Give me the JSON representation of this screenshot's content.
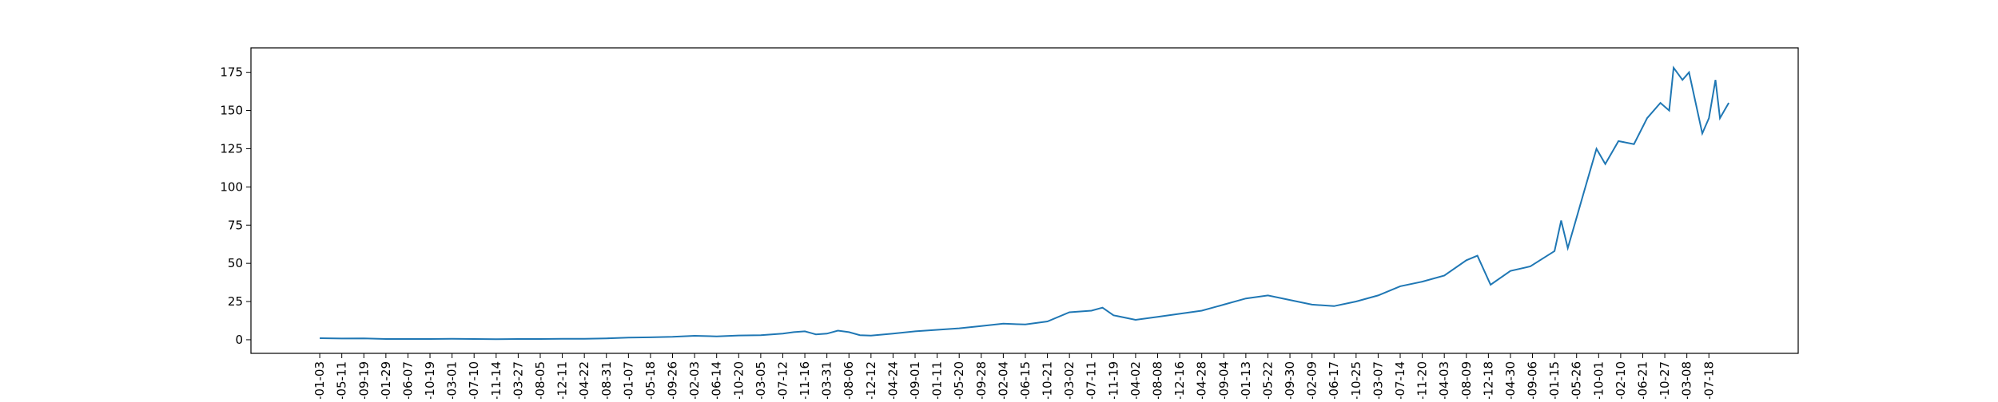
{
  "chart_data": {
    "type": "line",
    "color": "#1f77b4",
    "x": [
      0,
      1,
      2,
      3,
      4,
      5,
      6,
      7,
      8,
      9,
      10,
      11,
      12,
      13,
      14,
      15,
      16,
      17,
      18,
      19,
      20,
      21,
      21.5,
      22,
      22.5,
      23,
      23.5,
      24,
      24.5,
      25,
      26,
      27,
      28,
      29,
      30,
      31,
      32,
      33,
      34,
      35,
      35.5,
      36,
      37,
      38,
      39,
      40,
      41,
      42,
      43,
      44,
      45,
      46,
      47,
      48,
      49,
      50,
      51,
      52,
      52.5,
      53.1,
      54,
      54.9,
      56,
      56.3,
      56.6,
      56.9,
      57.3,
      57.6,
      57.9,
      58.3,
      58.9,
      59.6,
      60.2,
      60.8,
      61.2,
      61.4,
      61.8,
      62.1,
      62.4,
      62.7,
      63,
      63.3,
      63.5,
      63.9
    ],
    "values": [
      1,
      0.8,
      0.9,
      0.5,
      0.5,
      0.5,
      0.6,
      0.5,
      0.4,
      0.5,
      0.5,
      0.6,
      0.6,
      0.9,
      1.4,
      1.6,
      1.9,
      2.6,
      2.2,
      2.8,
      3,
      4,
      5,
      5.5,
      3.5,
      4,
      6,
      5,
      3,
      2.7,
      4,
      5.5,
      6.5,
      7.5,
      9,
      10.5,
      10,
      12,
      18,
      19,
      21,
      16,
      13,
      15,
      17,
      19,
      23,
      27,
      29,
      26,
      23,
      22,
      25,
      29,
      35,
      38,
      42,
      52,
      55,
      36,
      45,
      48,
      58,
      78,
      60,
      75,
      95,
      110,
      125,
      115,
      130,
      128,
      145,
      155,
      150,
      178,
      170,
      175,
      155,
      135,
      145,
      170,
      145,
      155
    ],
    "xlim": [
      -3.12,
      67.05
    ],
    "xticks": [
      {
        "value": 0,
        "label": "-01-03"
      },
      {
        "value": 1,
        "label": "-05-11"
      },
      {
        "value": 2,
        "label": "-09-19"
      },
      {
        "value": 3,
        "label": "-01-29"
      },
      {
        "value": 4,
        "label": "-06-07"
      },
      {
        "value": 5,
        "label": "-10-19"
      },
      {
        "value": 6,
        "label": "-03-01"
      },
      {
        "value": 7,
        "label": "-07-10"
      },
      {
        "value": 8,
        "label": "-11-14"
      },
      {
        "value": 9,
        "label": "-03-27"
      },
      {
        "value": 10,
        "label": "-08-05"
      },
      {
        "value": 11,
        "label": "-12-11"
      },
      {
        "value": 12,
        "label": "-04-22"
      },
      {
        "value": 13,
        "label": "-08-31"
      },
      {
        "value": 14,
        "label": "-01-07"
      },
      {
        "value": 15,
        "label": "-05-18"
      },
      {
        "value": 16,
        "label": "-09-26"
      },
      {
        "value": 17,
        "label": "-02-03"
      },
      {
        "value": 18,
        "label": "-06-14"
      },
      {
        "value": 19,
        "label": "-10-20"
      },
      {
        "value": 20,
        "label": "-03-05"
      },
      {
        "value": 21,
        "label": "-07-12"
      },
      {
        "value": 22,
        "label": "-11-16"
      },
      {
        "value": 23,
        "label": "-03-31"
      },
      {
        "value": 24,
        "label": "-08-06"
      },
      {
        "value": 25,
        "label": "-12-12"
      },
      {
        "value": 26,
        "label": "-04-24"
      },
      {
        "value": 27,
        "label": "-09-01"
      },
      {
        "value": 28,
        "label": "-01-11"
      },
      {
        "value": 29,
        "label": "-05-20"
      },
      {
        "value": 30,
        "label": "-09-28"
      },
      {
        "value": 31,
        "label": "-02-04"
      },
      {
        "value": 32,
        "label": "-06-15"
      },
      {
        "value": 33,
        "label": "-10-21"
      },
      {
        "value": 34,
        "label": "-03-02"
      },
      {
        "value": 35,
        "label": "-07-11"
      },
      {
        "value": 36,
        "label": "-11-19"
      },
      {
        "value": 37,
        "label": "-04-02"
      },
      {
        "value": 38,
        "label": "-08-08"
      },
      {
        "value": 39,
        "label": "-12-16"
      },
      {
        "value": 40,
        "label": "-04-28"
      },
      {
        "value": 41,
        "label": "-09-04"
      },
      {
        "value": 42,
        "label": "-01-13"
      },
      {
        "value": 43,
        "label": "-05-22"
      },
      {
        "value": 44,
        "label": "-09-30"
      },
      {
        "value": 45,
        "label": "-02-09"
      },
      {
        "value": 46,
        "label": "-06-17"
      },
      {
        "value": 47,
        "label": "-10-25"
      },
      {
        "value": 48,
        "label": "-03-07"
      },
      {
        "value": 49,
        "label": "-07-14"
      },
      {
        "value": 50,
        "label": "-11-20"
      },
      {
        "value": 51,
        "label": "-04-03"
      },
      {
        "value": 52,
        "label": "-08-09"
      },
      {
        "value": 53,
        "label": "-12-18"
      },
      {
        "value": 54,
        "label": "-04-30"
      },
      {
        "value": 55,
        "label": "-09-06"
      },
      {
        "value": 56,
        "label": "-01-15"
      },
      {
        "value": 57,
        "label": "-05-26"
      },
      {
        "value": 58,
        "label": "-10-01"
      },
      {
        "value": 59,
        "label": "-02-10"
      },
      {
        "value": 60,
        "label": "-06-21"
      },
      {
        "value": 61,
        "label": "-10-27"
      },
      {
        "value": 62,
        "label": "-03-08"
      },
      {
        "value": 63,
        "label": "-07-18"
      }
    ],
    "ylim": [
      -8.9,
      191
    ],
    "yticks": [
      0,
      25,
      50,
      75,
      100,
      125,
      150,
      175
    ]
  }
}
